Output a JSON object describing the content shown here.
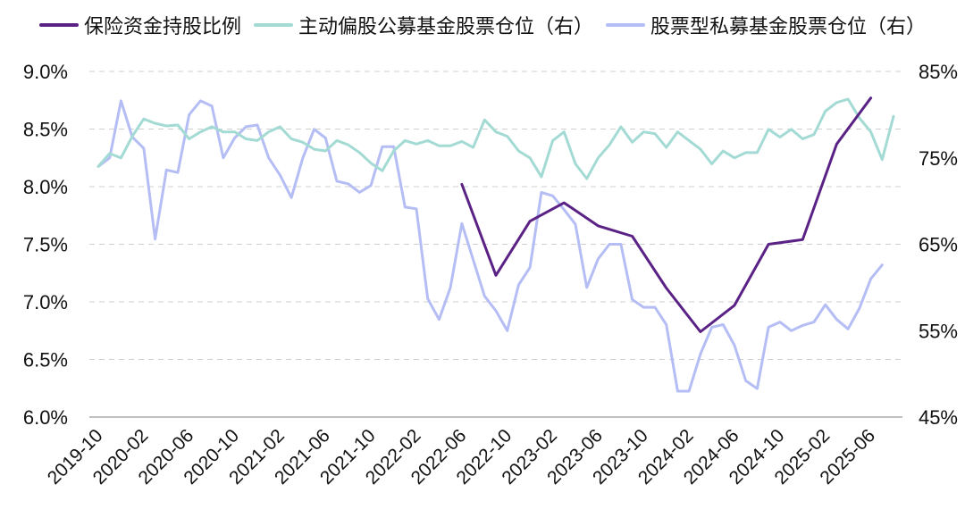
{
  "chart_data": {
    "type": "line",
    "title": "",
    "legend": {
      "position": "top",
      "items": [
        {
          "name": "保险资金持股比例",
          "color": "#5b2286"
        },
        {
          "name": "主动偏股公募基金股票仓位（右）",
          "color": "#a3dbd4"
        },
        {
          "name": "股票型私募基金股票仓位（右）",
          "color": "#b5bdf5"
        }
      ]
    },
    "y_left": {
      "min": 6.0,
      "max": 9.0,
      "step": 0.5,
      "ticks": [
        "6.0%",
        "6.5%",
        "7.0%",
        "7.5%",
        "8.0%",
        "8.5%",
        "9.0%"
      ]
    },
    "y_right": {
      "min": 45,
      "max": 85,
      "step": 10,
      "ticks": [
        "45%",
        "55%",
        "65%",
        "75%",
        "85%"
      ]
    },
    "grid": "horizontal dashed",
    "x_ticks": [
      "2019-10",
      "2020-02",
      "2020-06",
      "2020-10",
      "2021-02",
      "2021-06",
      "2021-10",
      "2022-02",
      "2022-06",
      "2022-10",
      "2023-02",
      "2023-06",
      "2023-10",
      "2024-02",
      "2024-06",
      "2024-10",
      "2025-02",
      "2025-06"
    ],
    "x_start": "2019-10",
    "x_end": "2025-08",
    "series": [
      {
        "name": "保险资金持股比例",
        "axis": "left",
        "color": "#5b2286",
        "width": 3,
        "points": [
          [
            "2022-06",
            8.02
          ],
          [
            "2022-09",
            7.23
          ],
          [
            "2022-12",
            7.7
          ],
          [
            "2023-03",
            7.86
          ],
          [
            "2023-06",
            7.66
          ],
          [
            "2023-09",
            7.57
          ],
          [
            "2023-12",
            7.12
          ],
          [
            "2024-03",
            6.74
          ],
          [
            "2024-06",
            6.97
          ],
          [
            "2024-09",
            7.5
          ],
          [
            "2024-12",
            7.54
          ],
          [
            "2025-03",
            8.37
          ],
          [
            "2025-06",
            8.77
          ]
        ]
      },
      {
        "name": "主动偏股公募基金股票仓位（右）",
        "axis": "right",
        "color": "#a3dbd4",
        "width": 3,
        "points": [
          [
            "2019-10",
            74.0
          ],
          [
            "2019-11",
            75.5
          ],
          [
            "2019-12",
            75.0
          ],
          [
            "2020-01",
            77.5
          ],
          [
            "2020-02",
            79.5
          ],
          [
            "2020-03",
            79.0
          ],
          [
            "2020-04",
            78.7
          ],
          [
            "2020-05",
            78.8
          ],
          [
            "2020-06",
            77.2
          ],
          [
            "2020-07",
            78.0
          ],
          [
            "2020-08",
            78.6
          ],
          [
            "2020-09",
            78.0
          ],
          [
            "2020-10",
            78.0
          ],
          [
            "2020-11",
            77.2
          ],
          [
            "2020-12",
            77.0
          ],
          [
            "2021-01",
            78.0
          ],
          [
            "2021-02",
            78.6
          ],
          [
            "2021-03",
            77.2
          ],
          [
            "2021-04",
            76.8
          ],
          [
            "2021-05",
            76.0
          ],
          [
            "2021-06",
            75.8
          ],
          [
            "2021-07",
            77.0
          ],
          [
            "2021-08",
            76.5
          ],
          [
            "2021-09",
            75.6
          ],
          [
            "2021-10",
            74.4
          ],
          [
            "2021-11",
            73.5
          ],
          [
            "2021-12",
            75.8
          ],
          [
            "2022-01",
            77.0
          ],
          [
            "2022-02",
            76.6
          ],
          [
            "2022-03",
            77.0
          ],
          [
            "2022-04",
            76.4
          ],
          [
            "2022-05",
            76.4
          ],
          [
            "2022-06",
            76.9
          ],
          [
            "2022-07",
            76.2
          ],
          [
            "2022-08",
            79.4
          ],
          [
            "2022-09",
            78.0
          ],
          [
            "2022-10",
            77.5
          ],
          [
            "2022-11",
            75.8
          ],
          [
            "2022-12",
            75.0
          ],
          [
            "2023-01",
            72.8
          ],
          [
            "2023-02",
            77.0
          ],
          [
            "2023-03",
            78.0
          ],
          [
            "2023-04",
            74.3
          ],
          [
            "2023-05",
            72.6
          ],
          [
            "2023-06",
            75.0
          ],
          [
            "2023-07",
            76.5
          ],
          [
            "2023-08",
            78.6
          ],
          [
            "2023-09",
            76.8
          ],
          [
            "2023-10",
            78.0
          ],
          [
            "2023-11",
            77.8
          ],
          [
            "2023-12",
            76.2
          ],
          [
            "2024-01",
            78.0
          ],
          [
            "2024-02",
            77.0
          ],
          [
            "2024-03",
            76.0
          ],
          [
            "2024-04",
            74.3
          ],
          [
            "2024-05",
            75.8
          ],
          [
            "2024-06",
            75.0
          ],
          [
            "2024-07",
            75.6
          ],
          [
            "2024-08",
            75.6
          ],
          [
            "2024-09",
            78.3
          ],
          [
            "2024-10",
            77.4
          ],
          [
            "2024-11",
            78.3
          ],
          [
            "2024-12",
            77.2
          ],
          [
            "2025-01",
            77.7
          ],
          [
            "2025-02",
            80.4
          ],
          [
            "2025-03",
            81.4
          ],
          [
            "2025-04",
            81.8
          ],
          [
            "2025-05",
            79.6
          ],
          [
            "2025-06",
            78.0
          ],
          [
            "2025-07",
            74.8
          ],
          [
            "2025-08",
            79.8
          ]
        ]
      },
      {
        "name": "股票型私募基金股票仓位（右）",
        "axis": "right",
        "color": "#b5bdf5",
        "width": 3,
        "points": [
          [
            "2019-10",
            74.0
          ],
          [
            "2019-11",
            75.0
          ],
          [
            "2019-12",
            81.6
          ],
          [
            "2020-01",
            77.4
          ],
          [
            "2020-02",
            76.1
          ],
          [
            "2020-03",
            65.6
          ],
          [
            "2020-04",
            73.6
          ],
          [
            "2020-05",
            73.3
          ],
          [
            "2020-06",
            80.0
          ],
          [
            "2020-07",
            81.6
          ],
          [
            "2020-08",
            81.0
          ],
          [
            "2020-09",
            75.0
          ],
          [
            "2020-10",
            77.3
          ],
          [
            "2020-11",
            78.6
          ],
          [
            "2020-12",
            78.8
          ],
          [
            "2021-01",
            75.0
          ],
          [
            "2021-02",
            73.0
          ],
          [
            "2021-03",
            70.4
          ],
          [
            "2021-04",
            75.0
          ],
          [
            "2021-05",
            78.3
          ],
          [
            "2021-06",
            77.3
          ],
          [
            "2021-07",
            72.3
          ],
          [
            "2021-08",
            72.0
          ],
          [
            "2021-09",
            71.0
          ],
          [
            "2021-10",
            71.8
          ],
          [
            "2021-11",
            76.3
          ],
          [
            "2021-12",
            76.3
          ],
          [
            "2022-01",
            69.3
          ],
          [
            "2022-02",
            69.1
          ],
          [
            "2022-03",
            58.7
          ],
          [
            "2022-04",
            56.3
          ],
          [
            "2022-05",
            60.0
          ],
          [
            "2022-06",
            67.4
          ],
          [
            "2022-07",
            63.2
          ],
          [
            "2022-08",
            59.0
          ],
          [
            "2022-09",
            57.3
          ],
          [
            "2022-10",
            55.0
          ],
          [
            "2022-11",
            60.3
          ],
          [
            "2022-12",
            62.3
          ],
          [
            "2023-01",
            71.0
          ],
          [
            "2023-02",
            70.6
          ],
          [
            "2023-03",
            69.0
          ],
          [
            "2023-04",
            67.3
          ],
          [
            "2023-05",
            60.0
          ],
          [
            "2023-06",
            63.3
          ],
          [
            "2023-07",
            65.0
          ],
          [
            "2023-08",
            65.0
          ],
          [
            "2023-09",
            58.6
          ],
          [
            "2023-10",
            57.7
          ],
          [
            "2023-11",
            57.7
          ],
          [
            "2023-12",
            55.7
          ],
          [
            "2024-01",
            48.0
          ],
          [
            "2024-02",
            48.0
          ],
          [
            "2024-03",
            52.3
          ],
          [
            "2024-04",
            55.4
          ],
          [
            "2024-05",
            55.7
          ],
          [
            "2024-06",
            53.3
          ],
          [
            "2024-07",
            49.2
          ],
          [
            "2024-08",
            48.3
          ],
          [
            "2024-09",
            55.4
          ],
          [
            "2024-10",
            56.0
          ],
          [
            "2024-11",
            55.0
          ],
          [
            "2024-12",
            55.6
          ],
          [
            "2025-01",
            56.0
          ],
          [
            "2025-02",
            58.0
          ],
          [
            "2025-03",
            56.3
          ],
          [
            "2025-04",
            55.2
          ],
          [
            "2025-05",
            57.6
          ],
          [
            "2025-06",
            61.0
          ],
          [
            "2025-07",
            62.6
          ]
        ]
      }
    ]
  }
}
